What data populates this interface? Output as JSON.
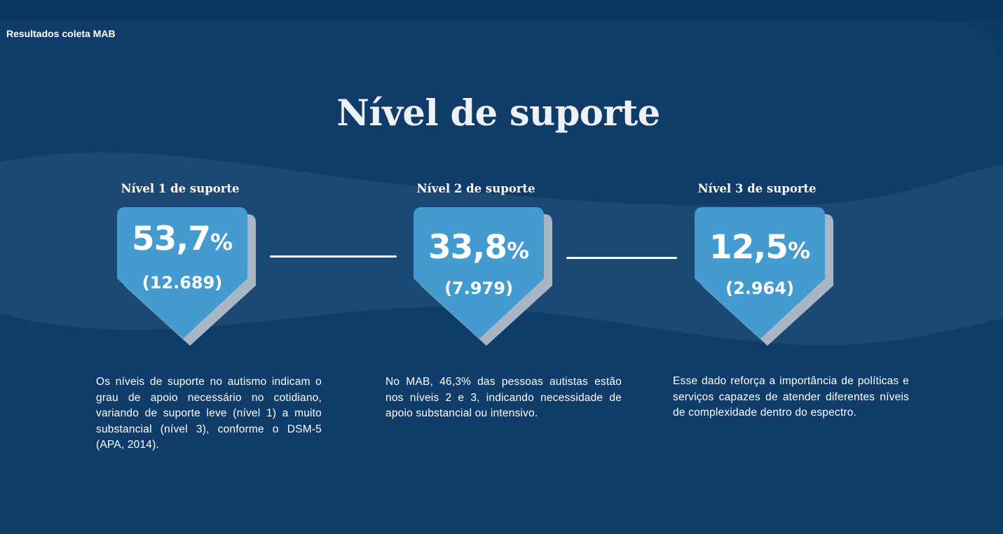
{
  "header": {
    "label": "Resultados coleta MAB"
  },
  "title": "Nível de suporte",
  "colors": {
    "background": "#0e3a66",
    "wave": "#1f4c77",
    "badge": "#439bd0",
    "badge_shadow": "#a9b6c6",
    "text": "#ffffff"
  },
  "levels": [
    {
      "title": "Nível 1 de suporte",
      "percent": "53,7",
      "percent_sign": "%",
      "count": "(12.689)",
      "description": "Os níveis de suporte no autismo indicam o grau de apoio necessário no cotidiano, variando de suporte leve (nível 1) a muito substancial (nível 3), conforme o DSM-5 (APA, 2014)."
    },
    {
      "title": "Nível 2 de suporte",
      "percent": "33,8",
      "percent_sign": "%",
      "count": "(7.979)",
      "description": "No MAB, 46,3% das pessoas autistas estão nos níveis 2 e 3, indicando necessidade de apoio substancial ou intensivo."
    },
    {
      "title": "Nível 3 de suporte",
      "percent": "12,5",
      "percent_sign": "%",
      "count": "(2.964)",
      "description": "Esse dado reforça a importância de políticas e serviços capazes de atender diferentes níveis de complexidade dentro do espectro."
    }
  ]
}
